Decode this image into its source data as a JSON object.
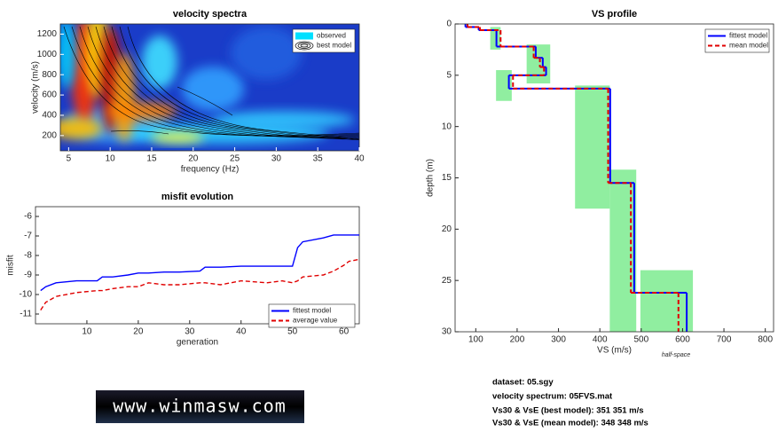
{
  "chart_data": [
    {
      "type": "heatmap",
      "title": "velocity spectra",
      "xlabel": "frequency (Hz)",
      "ylabel": "velocity (m/s)",
      "xlim": [
        4,
        40
      ],
      "xticks": [
        5,
        10,
        15,
        20,
        25,
        30,
        35,
        40
      ],
      "ylim": [
        50,
        1300
      ],
      "yticks": [
        200,
        400,
        600,
        800,
        1000,
        1200
      ],
      "series": [
        {
          "name": "observed",
          "color": "#00e0ff"
        },
        {
          "name": "best model",
          "color": "#000000"
        }
      ],
      "legend": "upper right"
    },
    {
      "type": "line",
      "title": "misfit evolution",
      "xlabel": "generation",
      "ylabel": "misfit",
      "x": [
        1,
        2,
        4,
        8,
        12,
        13,
        15,
        18,
        20,
        22,
        25,
        28,
        32,
        33,
        36,
        40,
        45,
        48,
        50,
        51,
        52,
        56,
        58,
        60,
        61,
        63
      ],
      "series": [
        {
          "name": "fittest model",
          "color": "#0000ff",
          "dash": false,
          "values": [
            -9.8,
            -9.6,
            -9.4,
            -9.3,
            -9.3,
            -9.1,
            -9.1,
            -9.0,
            -8.9,
            -8.9,
            -8.85,
            -8.85,
            -8.8,
            -8.6,
            -8.6,
            -8.55,
            -8.55,
            -8.55,
            -8.55,
            -7.6,
            -7.3,
            -7.1,
            -6.95,
            -6.95,
            -6.95,
            -6.95
          ]
        },
        {
          "name": "average value",
          "color": "#e00000",
          "dash": true,
          "values": [
            -10.8,
            -10.4,
            -10.1,
            -9.9,
            -9.8,
            -9.8,
            -9.7,
            -9.6,
            -9.6,
            -9.4,
            -9.5,
            -9.5,
            -9.4,
            -9.4,
            -9.5,
            -9.3,
            -9.4,
            -9.3,
            -9.4,
            -9.3,
            -9.1,
            -9.0,
            -8.8,
            -8.5,
            -8.3,
            -8.2
          ]
        }
      ],
      "xlim": [
        0,
        63
      ],
      "xticks": [
        10,
        20,
        30,
        40,
        50,
        60
      ],
      "ylim": [
        -11.5,
        -5.5
      ],
      "yticks": [
        -11,
        -10,
        -9,
        -8,
        -7,
        -6
      ],
      "legend": "lower right"
    },
    {
      "type": "profile",
      "title": "VS profile",
      "xlabel": "VS (m/s)",
      "ylabel": "depth (m)",
      "annotation": "half-space",
      "depths": [
        0,
        0.3,
        0.6,
        2.2,
        3.3,
        4.2,
        5.0,
        6.3,
        15.5,
        26.2,
        30
      ],
      "series": [
        {
          "name": "fittest model",
          "color": "#0000ff",
          "dash": false,
          "values": [
            75,
            107,
            150,
            245,
            262,
            270,
            180,
            425,
            483,
            610
          ]
        },
        {
          "name": "mean model",
          "color": "#e00000",
          "dash": true,
          "values": [
            80,
            110,
            160,
            240,
            255,
            265,
            190,
            420,
            475,
            590
          ]
        }
      ],
      "bands": [
        {
          "vs": [
            135,
            160
          ],
          "depth": [
            0.3,
            2.5
          ]
        },
        {
          "vs": [
            223,
            280
          ],
          "depth": [
            2,
            5.8
          ]
        },
        {
          "vs": [
            149,
            187
          ],
          "depth": [
            4.5,
            7.5
          ]
        },
        {
          "vs": [
            340,
            424
          ],
          "depth": [
            6,
            18
          ]
        },
        {
          "vs": [
            424,
            488
          ],
          "depth": [
            14.2,
            30
          ]
        },
        {
          "vs": [
            498,
            625
          ],
          "depth": [
            24,
            30
          ]
        }
      ],
      "band_color": "#90eea0",
      "xlim": [
        50,
        820
      ],
      "xticks": [
        100,
        200,
        300,
        400,
        500,
        600,
        700,
        800
      ],
      "ylim": [
        0,
        30
      ],
      "yticks": [
        0,
        5,
        10,
        15,
        20,
        25,
        30
      ],
      "y_reversed": true,
      "legend": "upper right"
    }
  ],
  "info": [
    "dataset: 05.sgy",
    "velocity spectrum: 05FVS.mat",
    "Vs30 & VsE (best model): 351  351 m/s",
    "Vs30 & VsE (mean model): 348  348 m/s"
  ],
  "logo": "www.winmasw.com"
}
